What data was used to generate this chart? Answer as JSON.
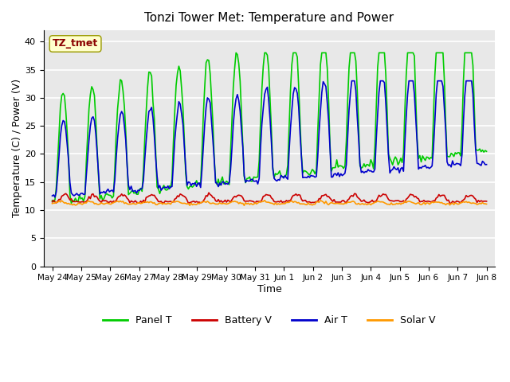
{
  "title": "Tonzi Tower Met: Temperature and Power",
  "xlabel": "Time",
  "ylabel": "Temperature (C) / Power (V)",
  "ylim": [
    0,
    42
  ],
  "yticks": [
    0,
    5,
    10,
    15,
    20,
    25,
    30,
    35,
    40
  ],
  "annotation_text": "TZ_tmet",
  "annotation_color": "#8B0000",
  "annotation_bg": "#FFFFCC",
  "bg_color": "#E8E8E8",
  "grid_color": "#FFFFFF",
  "series": {
    "Panel T": {
      "color": "#00CC00",
      "lw": 1.2
    },
    "Battery V": {
      "color": "#CC0000",
      "lw": 1.2
    },
    "Air T": {
      "color": "#0000CC",
      "lw": 1.2
    },
    "Solar V": {
      "color": "#FF9900",
      "lw": 1.2
    }
  },
  "x_labels": [
    "May 24",
    "May 25",
    "May 26",
    "May 27",
    "May 28",
    "May 29",
    "May 30",
    "May 31",
    "Jun 1",
    "Jun 2",
    "Jun 3",
    "Jun 4",
    "Jun 5",
    "Jun 6",
    "Jun 7",
    "Jun 8"
  ],
  "x_ticks": [
    0,
    1,
    2,
    3,
    4,
    5,
    6,
    7,
    8,
    9,
    10,
    11,
    12,
    13,
    14,
    15
  ],
  "num_points": 320
}
